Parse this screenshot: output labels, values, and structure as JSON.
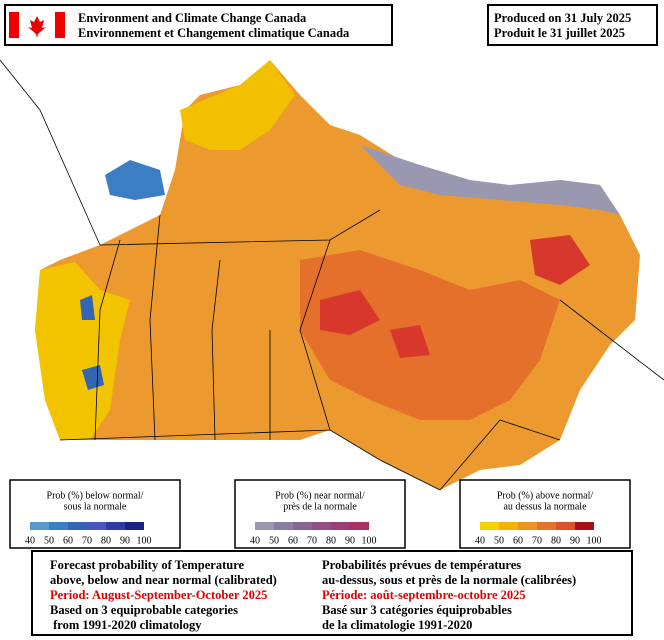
{
  "header": {
    "agency": [
      "Environment and Climate Change Canada",
      "Environnement et Changement climatique Canada"
    ],
    "produced": [
      "Produced on 31 July 2025",
      "Produit le 31 juillet 2025"
    ]
  },
  "legends": [
    {
      "title": [
        "Prob (%) below normal/",
        "sous la normale"
      ],
      "ticks": [
        40,
        50,
        60,
        70,
        80,
        90,
        100
      ],
      "colors": [
        "#5a98cc",
        "#3c7ec4",
        "#3266b4",
        "#4656bc",
        "#2c3ca4",
        "#1a2280"
      ]
    },
    {
      "title": [
        "Prob (%) near normal/",
        "près de la normale"
      ],
      "ticks": [
        40,
        50,
        60,
        70,
        80,
        90,
        100
      ],
      "colors": [
        "#9a98b0",
        "#8c7ca4",
        "#8a6494",
        "#924e86",
        "#9a3e7a",
        "#a83264"
      ]
    },
    {
      "title": [
        "Prob (%) above normal/",
        "au dessus la normale"
      ],
      "ticks": [
        40,
        50,
        60,
        70,
        80,
        90,
        100
      ],
      "colors": [
        "#f2d200",
        "#f0b400",
        "#ec9420",
        "#e4742c",
        "#dc5030",
        "#a81018"
      ]
    }
  ],
  "footer": {
    "left": [
      "Forecast probability of Temperature",
      "above, below and near normal (calibrated)",
      "Period: August-September-October 2025",
      "Based on 3 equiprobable categories",
      " from 1991-2020 climatology"
    ],
    "right": [
      "Probabilités prévues de températures",
      "au-dessus, sous et près de la normale (calibrées)",
      "Période: août-septembre-octobre 2025",
      "Basé sur 3 catégories équiprobables",
      "de la climatologie 1991-2020"
    ]
  }
}
